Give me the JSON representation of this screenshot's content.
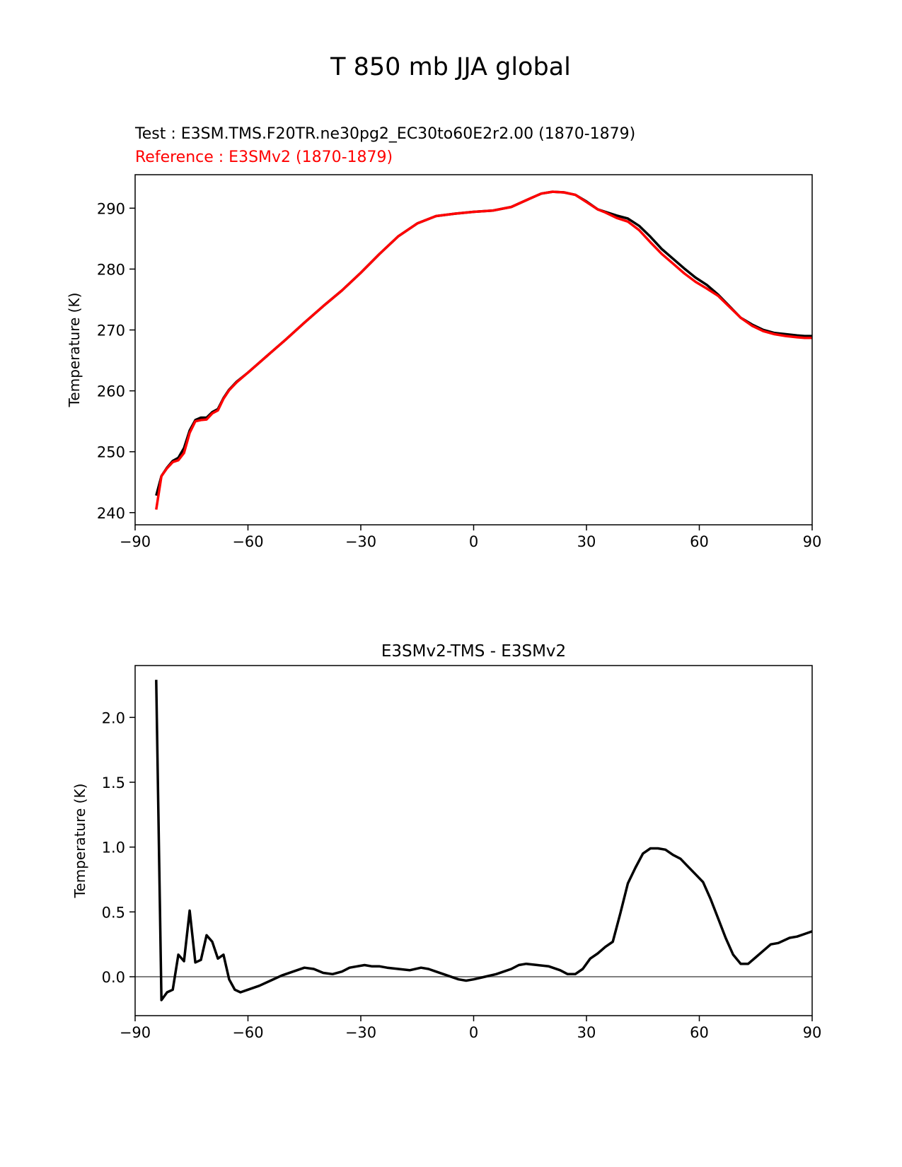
{
  "figure": {
    "suptitle": "T 850 mb JJA global",
    "test_label": "Test : E3SM.TMS.F20TR.ne30pg2_EC30to60E2r2.00 (1870-1879)",
    "ref_label": "Reference : E3SMv2 (1870-1879)"
  },
  "colors": {
    "test": "#000000",
    "reference": "#ff0000",
    "zero_line": "#808080"
  },
  "chart_data": [
    {
      "type": "line",
      "title": "",
      "xlabel": "",
      "ylabel": "Temperature (K)",
      "xlim": [
        -90,
        90
      ],
      "ylim": [
        238,
        295.5
      ],
      "xticks": [
        -90,
        -60,
        -30,
        0,
        30,
        60,
        90
      ],
      "xtick_labels": [
        "−90",
        "−60",
        "−30",
        "0",
        "30",
        "60",
        "90"
      ],
      "yticks": [
        240,
        250,
        260,
        270,
        280,
        290
      ],
      "yticks_labels": [
        "240",
        "250",
        "260",
        "270",
        "280",
        "290"
      ],
      "grid": false,
      "series": [
        {
          "name": "Test : E3SM.TMS.F20TR.ne30pg2_EC30to60E2r2.00 (1870-1879)",
          "color": "#000000",
          "x": [
            -84.4,
            -83,
            -81.5,
            -80,
            -78.5,
            -77,
            -75.5,
            -74,
            -72.5,
            -71,
            -69.5,
            -68,
            -66.5,
            -65,
            -63,
            -60,
            -55,
            -50,
            -45,
            -40,
            -35,
            -30,
            -25,
            -20,
            -15,
            -10,
            -5,
            0,
            5,
            10,
            15,
            18,
            21,
            24,
            27,
            30,
            33,
            35,
            38,
            41,
            44,
            47,
            50,
            53,
            56,
            59,
            62,
            65,
            68,
            71,
            74,
            77,
            80,
            83,
            86,
            88,
            90
          ],
          "y": [
            242.8,
            246.0,
            247.4,
            248.5,
            249.0,
            250.6,
            253.5,
            255.2,
            255.6,
            255.6,
            256.5,
            257.0,
            258.8,
            260.2,
            261.5,
            263.0,
            265.7,
            268.4,
            271.2,
            273.9,
            276.5,
            279.4,
            282.5,
            285.4,
            287.5,
            288.7,
            289.1,
            289.4,
            289.6,
            290.2,
            291.6,
            292.4,
            292.7,
            292.6,
            292.2,
            291.1,
            289.8,
            289.4,
            288.8,
            288.3,
            287.1,
            285.3,
            283.3,
            281.7,
            280.1,
            278.6,
            277.4,
            275.8,
            273.9,
            272.0,
            270.9,
            270.0,
            269.5,
            269.3,
            269.1,
            269.0,
            269.0
          ]
        },
        {
          "name": "Reference : E3SMv2 (1870-1879)",
          "color": "#ff0000",
          "x": [
            -84.4,
            -83,
            -81.5,
            -80,
            -78.5,
            -77,
            -75.5,
            -74,
            -72.5,
            -71,
            -69.5,
            -68,
            -66.5,
            -65,
            -63,
            -60,
            -55,
            -50,
            -45,
            -40,
            -35,
            -30,
            -25,
            -20,
            -15,
            -10,
            -5,
            0,
            5,
            10,
            15,
            18,
            21,
            24,
            27,
            30,
            33,
            35,
            38,
            41,
            44,
            47,
            50,
            53,
            56,
            59,
            62,
            65,
            68,
            71,
            74,
            77,
            80,
            83,
            86,
            88,
            90
          ],
          "y": [
            240.5,
            246.0,
            247.3,
            248.3,
            248.6,
            249.8,
            253.1,
            255.0,
            255.2,
            255.3,
            256.3,
            256.8,
            258.7,
            260.1,
            261.4,
            263.0,
            265.7,
            268.4,
            271.2,
            273.9,
            276.5,
            279.4,
            282.5,
            285.4,
            287.5,
            288.7,
            289.1,
            289.4,
            289.6,
            290.2,
            291.6,
            292.4,
            292.7,
            292.6,
            292.2,
            291.0,
            289.8,
            289.3,
            288.4,
            287.8,
            286.4,
            284.4,
            282.5,
            280.9,
            279.3,
            277.9,
            276.8,
            275.6,
            273.8,
            272.0,
            270.7,
            269.8,
            269.3,
            269.0,
            268.8,
            268.7,
            268.7
          ]
        }
      ]
    },
    {
      "type": "line",
      "title": "E3SMv2-TMS - E3SMv2",
      "xlabel": "",
      "ylabel": "Temperature (K)",
      "xlim": [
        -90,
        90
      ],
      "ylim": [
        -0.3,
        2.4
      ],
      "xticks": [
        -90,
        -60,
        -30,
        0,
        30,
        60,
        90
      ],
      "xtick_labels": [
        "−90",
        "−60",
        "−30",
        "0",
        "30",
        "60",
        "90"
      ],
      "yticks": [
        0,
        0.5,
        1,
        1.5,
        2
      ],
      "yticks_labels": [
        "0.0",
        "0.5",
        "1.0",
        "1.5",
        "2.0"
      ],
      "grid": false,
      "zero_line": 0,
      "series": [
        {
          "name": "",
          "color": "#000000",
          "x": [
            -84.4,
            -83,
            -81.5,
            -80,
            -78.5,
            -77,
            -75.5,
            -74,
            -72.5,
            -71,
            -69.5,
            -68,
            -66.5,
            -65,
            -63.5,
            -62,
            -60,
            -57,
            -54,
            -51,
            -48,
            -45,
            -42.5,
            -40,
            -37.5,
            -35,
            -33,
            -31,
            -29,
            -27,
            -25,
            -23,
            -20,
            -17,
            -14,
            -12,
            -10,
            -7,
            -4,
            -2,
            0,
            3,
            6,
            8,
            10,
            12,
            14,
            17,
            20,
            23,
            25,
            27,
            29,
            31,
            33,
            35,
            37,
            39,
            41,
            43,
            45,
            47,
            49,
            51,
            53,
            55,
            57,
            59,
            61,
            63,
            65,
            67,
            69,
            71,
            73,
            75,
            77,
            79,
            81,
            84,
            86,
            88,
            90
          ],
          "y": [
            2.29,
            -0.18,
            -0.12,
            -0.1,
            0.17,
            0.12,
            0.51,
            0.11,
            0.13,
            0.32,
            0.27,
            0.14,
            0.17,
            -0.02,
            -0.1,
            -0.12,
            -0.1,
            -0.07,
            -0.03,
            0.01,
            0.04,
            0.07,
            0.06,
            0.03,
            0.02,
            0.04,
            0.07,
            0.08,
            0.09,
            0.08,
            0.08,
            0.07,
            0.06,
            0.05,
            0.07,
            0.06,
            0.04,
            0.01,
            -0.02,
            -0.03,
            -0.02,
            0.0,
            0.02,
            0.04,
            0.06,
            0.09,
            0.1,
            0.09,
            0.08,
            0.05,
            0.02,
            0.02,
            0.06,
            0.14,
            0.18,
            0.23,
            0.27,
            0.49,
            0.72,
            0.84,
            0.95,
            0.99,
            0.99,
            0.98,
            0.94,
            0.91,
            0.85,
            0.79,
            0.73,
            0.6,
            0.45,
            0.3,
            0.17,
            0.1,
            0.1,
            0.15,
            0.2,
            0.25,
            0.26,
            0.3,
            0.31,
            0.33,
            0.35
          ]
        }
      ]
    }
  ]
}
